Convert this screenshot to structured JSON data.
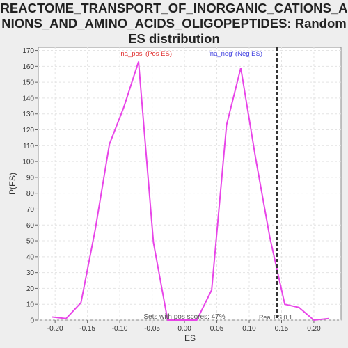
{
  "chart_data": {
    "type": "line",
    "title": "REACTOME_TRANSPORT_OF_INORGANIC_CATIONS_ANIONS_AND_AMINO_ACIDS_OLIGOPEPTIDES: Random ES distribution",
    "x_label": "ES",
    "y_label": "P(ES)",
    "x": [
      -0.205,
      -0.183,
      -0.16,
      -0.138,
      -0.116,
      -0.094,
      -0.071,
      -0.048,
      -0.026,
      -0.003,
      0.019,
      0.042,
      0.065,
      0.087,
      0.11,
      0.132,
      0.155,
      0.177,
      0.2,
      0.223
    ],
    "series": [
      {
        "name": "P(ES)",
        "color": "#e845e8",
        "values": [
          2,
          1,
          11,
          57,
          111,
          134,
          163,
          49,
          0,
          0,
          0,
          19,
          123,
          159,
          102,
          52,
          10,
          8,
          0,
          1
        ]
      }
    ],
    "xlim": [
      -0.226,
      0.242
    ],
    "ylim": [
      0,
      172
    ],
    "xticks": [
      {
        "value": -0.2,
        "label": "-0.20"
      },
      {
        "value": -0.15,
        "label": "-0.15"
      },
      {
        "value": -0.1,
        "label": "-0.10"
      },
      {
        "value": -0.05,
        "label": "-0.05"
      },
      {
        "value": 0,
        "label": "0.00"
      },
      {
        "value": 0.05,
        "label": "0.05"
      },
      {
        "value": 0.1,
        "label": "0.10"
      },
      {
        "value": 0.15,
        "label": "0.15"
      },
      {
        "value": 0.2,
        "label": "0.20"
      }
    ],
    "yticks": [
      0,
      10,
      20,
      30,
      40,
      50,
      60,
      70,
      80,
      90,
      100,
      110,
      120,
      130,
      140,
      150,
      160,
      170
    ],
    "grid": true,
    "real_es_line": {
      "value": 0.143,
      "label": "Real ES 0.1"
    },
    "pos_label": {
      "text": "'na_pos' (Pos ES)",
      "x": -0.06,
      "color": "#e03030"
    },
    "neg_label": {
      "text": "'na_neg' (Neg ES)",
      "x": 0.079,
      "color": "#4040e0"
    },
    "footer": "Sets with pos scores: 47%"
  }
}
